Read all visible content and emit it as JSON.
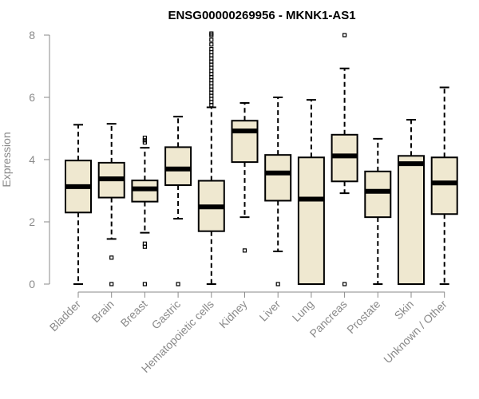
{
  "chart_data": {
    "type": "boxplot",
    "title": "ENSG00000269956 - MKNK1-AS1",
    "xlabel": "",
    "ylabel": "Expression",
    "ylim": [
      0,
      8
    ],
    "yticks": [
      0,
      2,
      4,
      6,
      8
    ],
    "categories": [
      "Bladder",
      "Brain",
      "Breast",
      "Gastric",
      "Hematopoietic cells",
      "Kidney",
      "Liver",
      "Lung",
      "Pancreas",
      "Prostate",
      "Skin",
      "Unknown / Other"
    ],
    "series": [
      {
        "name": "Bladder",
        "min": 0,
        "q1": 2.3,
        "median": 3.13,
        "q3": 3.97,
        "max": 5.12,
        "outliers": []
      },
      {
        "name": "Brain",
        "min": 1.45,
        "q1": 2.78,
        "median": 3.38,
        "q3": 3.9,
        "max": 5.15,
        "outliers": [
          0.85,
          0
        ]
      },
      {
        "name": "Breast",
        "min": 1.65,
        "q1": 2.65,
        "median": 3.06,
        "q3": 3.33,
        "max": 4.38,
        "outliers": [
          4.7,
          4.62,
          4.55,
          1.3,
          1.2,
          0
        ]
      },
      {
        "name": "Gastric",
        "min": 2.1,
        "q1": 3.18,
        "median": 3.7,
        "q3": 4.4,
        "max": 5.38,
        "outliers": [
          0
        ]
      },
      {
        "name": "Hematopoietic cells",
        "min": 0,
        "q1": 1.7,
        "median": 2.48,
        "q3": 3.32,
        "max": 5.68,
        "outliers": [
          5.75,
          5.85,
          5.95,
          6.05,
          6.15,
          6.25,
          6.35,
          6.45,
          6.55,
          6.65,
          6.75,
          6.85,
          6.95,
          7.05,
          7.15,
          7.25,
          7.35,
          7.45,
          7.55,
          7.7,
          7.85,
          8.0,
          8.05
        ]
      },
      {
        "name": "Kidney",
        "min": 2.15,
        "q1": 3.92,
        "median": 4.92,
        "q3": 5.25,
        "max": 5.82,
        "outliers": [
          1.08
        ]
      },
      {
        "name": "Liver",
        "min": 1.05,
        "q1": 2.68,
        "median": 3.57,
        "q3": 4.15,
        "max": 6.0,
        "outliers": [
          0
        ]
      },
      {
        "name": "Lung",
        "min": 0,
        "q1": 0,
        "median": 2.73,
        "q3": 4.07,
        "max": 5.92,
        "outliers": []
      },
      {
        "name": "Pancreas",
        "min": 2.92,
        "q1": 3.3,
        "median": 4.12,
        "q3": 4.8,
        "max": 6.93,
        "outliers": [
          8.0,
          0
        ]
      },
      {
        "name": "Prostate",
        "min": 0,
        "q1": 2.15,
        "median": 2.98,
        "q3": 3.62,
        "max": 4.67,
        "outliers": []
      },
      {
        "name": "Skin",
        "min": 0,
        "q1": 0,
        "median": 3.87,
        "q3": 4.12,
        "max": 5.28,
        "outliers": []
      },
      {
        "name": "Unknown / Other",
        "min": 0,
        "q1": 2.25,
        "median": 3.25,
        "q3": 4.07,
        "max": 6.32,
        "outliers": []
      }
    ],
    "colors": {
      "box_fill": "#efe8d0",
      "box_stroke": "#000000",
      "axis": "#8a8a8a"
    }
  }
}
